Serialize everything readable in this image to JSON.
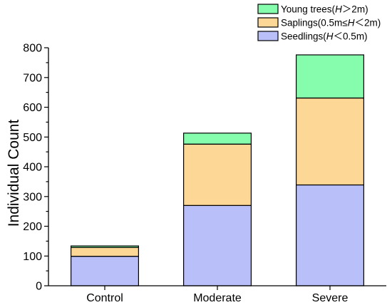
{
  "chart_data": {
    "type": "bar",
    "stacked": true,
    "title": "",
    "xlabel": "",
    "ylabel": "Individual Count",
    "ylim": [
      0,
      800
    ],
    "yticks": [
      0,
      100,
      200,
      300,
      400,
      500,
      600,
      700,
      800
    ],
    "categories": [
      "Control",
      "Moderate",
      "Severe"
    ],
    "series": [
      {
        "name": "Seedlings(H＜0.5m)",
        "values": [
          99,
          270,
          339
        ],
        "color": "#b8bff9"
      },
      {
        "name": "Saplings(0.5m≤H＜2m)",
        "values": [
          30,
          206,
          292
        ],
        "color": "#fdd795"
      },
      {
        "name": "Young trees(H＞2m)",
        "values": [
          5,
          37,
          145
        ],
        "color": "#85fdac"
      }
    ],
    "legend": {
      "position": "top-right",
      "order": [
        2,
        1,
        0
      ],
      "items": [
        {
          "pre": "Young trees(",
          "it": "H",
          "post": "＞2m)"
        },
        {
          "pre": "Saplings(0.5m≤",
          "it": "H",
          "post": "＜2m)"
        },
        {
          "pre": "Seedlings(",
          "it": "H",
          "post": "＜0.5m)"
        }
      ]
    },
    "grid": false
  }
}
